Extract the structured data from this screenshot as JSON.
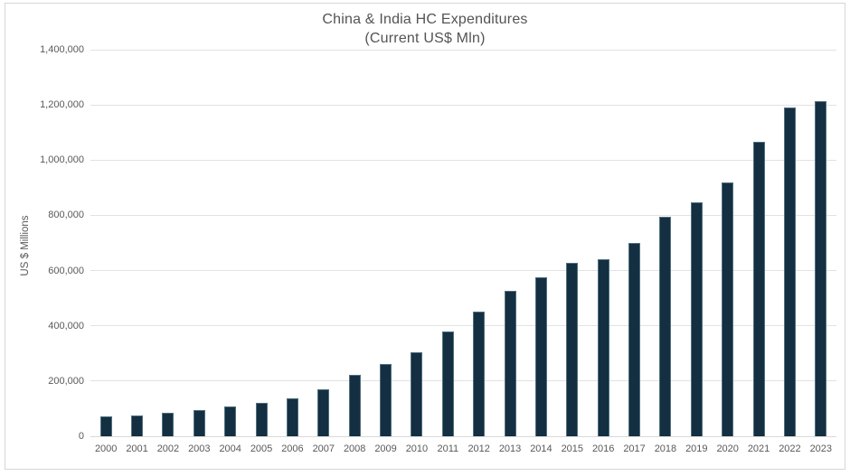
{
  "title": {
    "line1": "China & India HC Expenditures",
    "line2": "(Current US$ Mln)"
  },
  "y_axis": {
    "title": "US $ Millions",
    "tick_labels": [
      "0",
      "200,000",
      "400,000",
      "600,000",
      "800,000",
      "1,000,000",
      "1,200,000",
      "1,400,000"
    ],
    "tick_values": [
      0,
      200000,
      400000,
      600000,
      800000,
      1000000,
      1200000,
      1400000
    ]
  },
  "x_axis": {
    "categories": [
      "2000",
      "2001",
      "2002",
      "2003",
      "2004",
      "2005",
      "2006",
      "2007",
      "2008",
      "2009",
      "2010",
      "2011",
      "2012",
      "2013",
      "2014",
      "2015",
      "2016",
      "2017",
      "2018",
      "2019",
      "2020",
      "2021",
      "2022",
      "2023"
    ]
  },
  "colors": {
    "bar_fill": "#132f41",
    "bar_border": "#51707f",
    "gridline": "#e2e2e2",
    "axis_line": "#d9d9d9",
    "frame_border": "#d6d6d6",
    "title_text": "#545454",
    "axis_text": "#595959",
    "background": "#ffffff"
  },
  "chart_data": {
    "type": "bar",
    "title": "China & India HC Expenditures (Current US$ Mln)",
    "xlabel": "",
    "ylabel": "US $ Millions",
    "categories": [
      "2000",
      "2001",
      "2002",
      "2003",
      "2004",
      "2005",
      "2006",
      "2007",
      "2008",
      "2009",
      "2010",
      "2011",
      "2012",
      "2013",
      "2014",
      "2015",
      "2016",
      "2017",
      "2018",
      "2019",
      "2020",
      "2021",
      "2022",
      "2023"
    ],
    "values": [
      72000,
      75000,
      84000,
      94000,
      108000,
      121000,
      136000,
      171000,
      221000,
      262000,
      305000,
      379000,
      450000,
      527000,
      576000,
      627000,
      641000,
      700000,
      795000,
      848000,
      920000,
      1065000,
      1192000,
      1212000
    ],
    "ylim": [
      0,
      1400000
    ],
    "ytick_step": 200000,
    "grid": true,
    "legend": false
  }
}
